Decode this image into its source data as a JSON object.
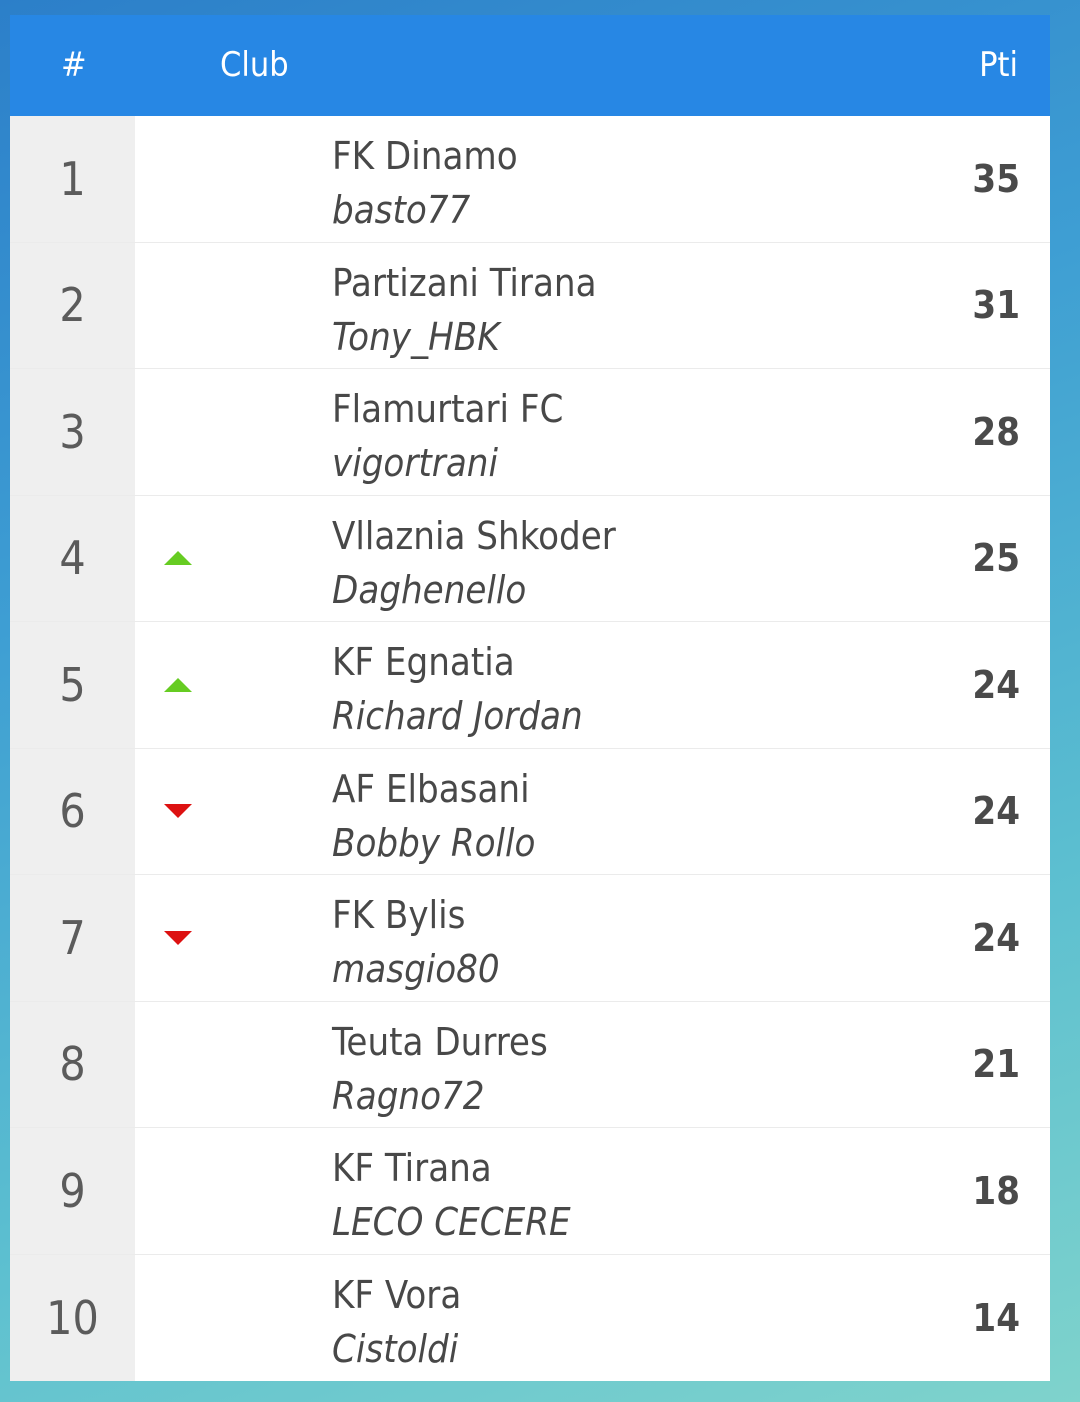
{
  "header": {
    "rank_label": "#",
    "club_label": "Club",
    "points_label": "Pti"
  },
  "colors": {
    "header_bg": "#2787e4",
    "trend_up": "#66cc22",
    "trend_down": "#dd1111"
  },
  "rows": [
    {
      "rank": "1",
      "club": "FK Dinamo",
      "manager": "basto77",
      "points": "35",
      "trend": "none"
    },
    {
      "rank": "2",
      "club": "Partizani Tirana",
      "manager": "Tony_HBK",
      "points": "31",
      "trend": "none"
    },
    {
      "rank": "3",
      "club": "Flamurtari FC",
      "manager": "vigortrani",
      "points": "28",
      "trend": "none"
    },
    {
      "rank": "4",
      "club": "Vllaznia Shkoder",
      "manager": "Daghenello",
      "points": "25",
      "trend": "up"
    },
    {
      "rank": "5",
      "club": "KF Egnatia",
      "manager": "Richard Jordan",
      "points": "24",
      "trend": "up"
    },
    {
      "rank": "6",
      "club": "AF Elbasani",
      "manager": "Bobby Rollo",
      "points": "24",
      "trend": "down"
    },
    {
      "rank": "7",
      "club": "FK Bylis",
      "manager": "masgio80",
      "points": "24",
      "trend": "down"
    },
    {
      "rank": "8",
      "club": "Teuta Durres",
      "manager": "Ragno72",
      "points": "21",
      "trend": "none"
    },
    {
      "rank": "9",
      "club": "KF Tirana",
      "manager": "LECO CECERE",
      "points": "18",
      "trend": "none"
    },
    {
      "rank": "10",
      "club": "KF Vora",
      "manager": "Cistoldi",
      "points": "14",
      "trend": "none"
    }
  ]
}
